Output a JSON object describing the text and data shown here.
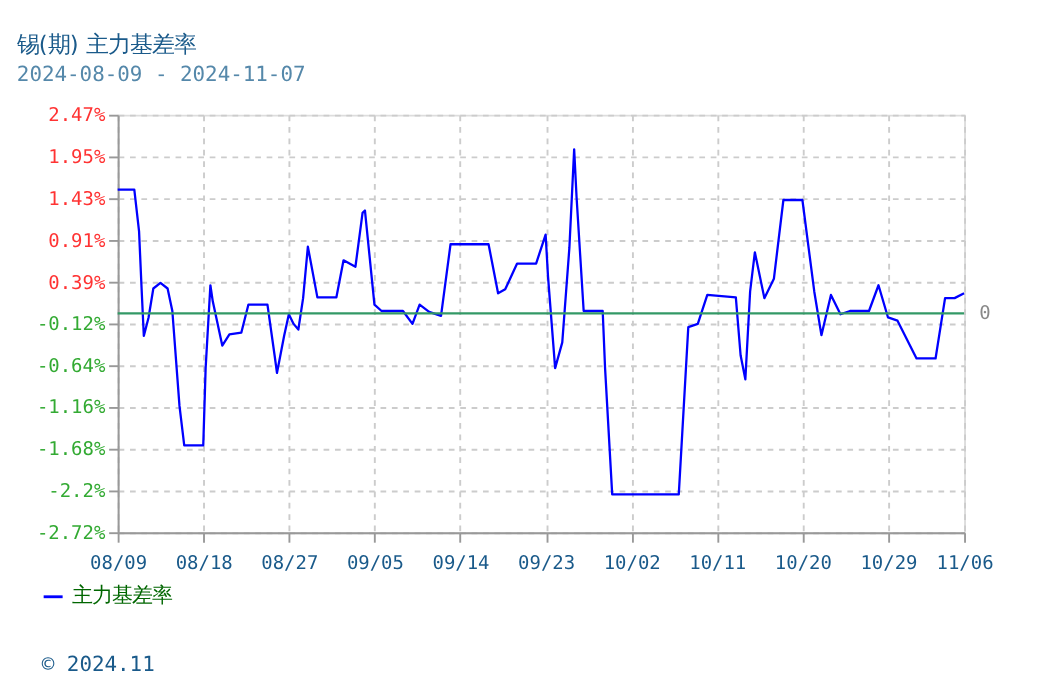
{
  "chart_data": {
    "type": "line",
    "title": "锡(期) 主力基差率",
    "subtitle": "2024-08-09 - 2024-11-07",
    "x": [
      "2024-08-09",
      "2024-08-10T18:00",
      "2024-08-11T06:00",
      "2024-08-11T12:00",
      "2024-08-11T18:00",
      "2024-08-12T06:00",
      "2024-08-12T18:00",
      "2024-08-13T12:00",
      "2024-08-14T06:00",
      "2024-08-14T18:00",
      "2024-08-15T12:00",
      "2024-08-16",
      "2024-08-18",
      "2024-08-18T06:00",
      "2024-08-18T18:00",
      "2024-08-19",
      "2024-08-20",
      "2024-08-20T18:00",
      "2024-08-22",
      "2024-08-22T18:00",
      "2024-08-24T18:00",
      "2024-08-25T12:00",
      "2024-08-25T18:00",
      "2024-08-26T12:00",
      "2024-08-27",
      "2024-08-27T12:00",
      "2024-08-28",
      "2024-08-28T12:00",
      "2024-08-29",
      "2024-08-30",
      "2024-09-01",
      "2024-09-01T18:00",
      "2024-09-03",
      "2024-09-03T18:00",
      "2024-09-04",
      "2024-09-05",
      "2024-09-05T18:00",
      "2024-09-08",
      "2024-09-09",
      "2024-09-09T18:00",
      "2024-09-10T18:00",
      "2024-09-12",
      "2024-09-13",
      "2024-09-17",
      "2024-09-18",
      "2024-09-18T18:00",
      "2024-09-20",
      "2024-09-22",
      "2024-09-23",
      "2024-09-23T06:00",
      "2024-09-24",
      "2024-09-24T18:00",
      "2024-09-25T12:00",
      "2024-09-26",
      "2024-09-26T06:00",
      "2024-09-27",
      "2024-09-29",
      "2024-09-29T06:00",
      "2024-09-30",
      "2024-10-07",
      "2024-10-08",
      "2024-10-09",
      "2024-10-10",
      "2024-10-13",
      "2024-10-13T12:00",
      "2024-10-14",
      "2024-10-14T12:00",
      "2024-10-15",
      "2024-10-16",
      "2024-10-17",
      "2024-10-18",
      "2024-10-20",
      "2024-10-21T06:00",
      "2024-10-22",
      "2024-10-23",
      "2024-10-24",
      "2024-10-25",
      "2024-10-27",
      "2024-10-28",
      "2024-10-29",
      "2024-10-30",
      "2024-11-01",
      "2024-11-03",
      "2024-11-04",
      "2024-11-05",
      "2024-11-06"
    ],
    "series": [
      {
        "name": "主力基差率",
        "color": "#0000ff",
        "values": [
          1.54,
          1.54,
          1.02,
          0.35,
          -0.28,
          -0.05,
          0.31,
          0.38,
          0.31,
          0.03,
          -1.15,
          -1.64,
          -1.64,
          -0.68,
          0.35,
          0.15,
          -0.4,
          -0.26,
          -0.24,
          0.11,
          0.11,
          -0.52,
          -0.74,
          -0.28,
          -0.01,
          -0.13,
          -0.2,
          0.19,
          0.83,
          0.2,
          0.2,
          0.66,
          0.58,
          1.25,
          1.28,
          0.11,
          0.03,
          0.03,
          -0.13,
          0.11,
          0.02,
          -0.03,
          0.86,
          0.86,
          0.25,
          0.3,
          0.62,
          0.62,
          0.98,
          0.46,
          -0.68,
          -0.36,
          0.82,
          2.04,
          1.45,
          0.03,
          0.03,
          -0.68,
          -2.25,
          -2.25,
          -0.17,
          -0.13,
          0.23,
          0.2,
          -0.52,
          -0.82,
          0.27,
          0.76,
          0.19,
          0.43,
          1.41,
          1.41,
          0.27,
          -0.27,
          0.23,
          -0.01,
          0.03,
          0.03,
          0.35,
          -0.05,
          -0.09,
          -0.56,
          -0.56,
          0.19,
          0.19,
          0.25
        ]
      }
    ],
    "xlim": [
      "2024-08-09",
      "2024-11-06"
    ],
    "xticks": [
      {
        "value": "2024-08-09",
        "label": "08/09"
      },
      {
        "value": "2024-08-18",
        "label": "08/18"
      },
      {
        "value": "2024-08-27",
        "label": "08/27"
      },
      {
        "value": "2024-09-05",
        "label": "09/05"
      },
      {
        "value": "2024-09-14",
        "label": "09/14"
      },
      {
        "value": "2024-09-23",
        "label": "09/23"
      },
      {
        "value": "2024-10-02",
        "label": "10/02"
      },
      {
        "value": "2024-10-11",
        "label": "10/11"
      },
      {
        "value": "2024-10-20",
        "label": "10/20"
      },
      {
        "value": "2024-10-29",
        "label": "10/29"
      },
      {
        "value": "2024-11-06",
        "label": "11/06"
      }
    ],
    "ylim": [
      -2.72,
      2.47
    ],
    "yticks": [
      {
        "value": -2.72,
        "label": "-2.72%"
      },
      {
        "value": -2.2,
        "label": "-2.2%"
      },
      {
        "value": -1.68,
        "label": "-1.68%"
      },
      {
        "value": -1.16,
        "label": "-1.16%"
      },
      {
        "value": -0.64,
        "label": "-0.64%"
      },
      {
        "value": -0.12,
        "label": "-0.12%"
      },
      {
        "value": 0.39,
        "label": "0.39%"
      },
      {
        "value": 0.91,
        "label": "0.91%"
      },
      {
        "value": 1.43,
        "label": "1.43%"
      },
      {
        "value": 1.95,
        "label": "1.95%"
      },
      {
        "value": 2.47,
        "label": "2.47%"
      }
    ],
    "ref_lines": [
      {
        "axis": "y",
        "value": 0,
        "label": "0",
        "color": "#339966"
      }
    ],
    "grid": true,
    "legend": "bottom left",
    "marker": "none",
    "line_style": "solid",
    "annotations": [
      "© 2024.11"
    ]
  }
}
